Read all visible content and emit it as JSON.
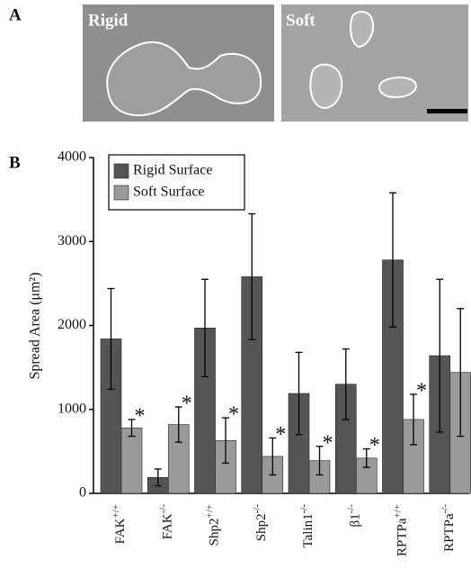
{
  "panel_labels": [
    "A",
    "B"
  ],
  "panel_a": {
    "left_label": "Rigid",
    "right_label": "Soft"
  },
  "chart_data": {
    "type": "bar",
    "y_label": "Spread Area (μm²)",
    "categories": [
      "FAK",
      "FAK",
      "Shp2",
      "Shp2",
      "Talin1",
      "β1",
      "RPTPa",
      "RPTPa"
    ],
    "category_superscripts": [
      "+/+",
      "-/-",
      "+/+",
      "-/-",
      "-/-",
      "-/-",
      "+/+",
      "-/-"
    ],
    "series": [
      {
        "name": "Rigid Surface",
        "color": "#555555",
        "values": [
          1840,
          190,
          1970,
          2580,
          1190,
          1300,
          2780,
          1640
        ],
        "errors": [
          600,
          100,
          580,
          750,
          490,
          420,
          800,
          910
        ]
      },
      {
        "name": "Soft Surface",
        "color": "#9a9a9a",
        "values": [
          780,
          820,
          630,
          440,
          390,
          420,
          880,
          1440
        ],
        "errors": [
          100,
          210,
          270,
          220,
          170,
          110,
          300,
          760
        ],
        "markers": [
          "*",
          "*",
          "*",
          "*",
          "*",
          "*",
          "*",
          null
        ]
      }
    ],
    "ylim": [
      0,
      4000
    ],
    "yticks": [
      0,
      1000,
      2000,
      3000,
      4000
    ],
    "legend": "top-left"
  }
}
